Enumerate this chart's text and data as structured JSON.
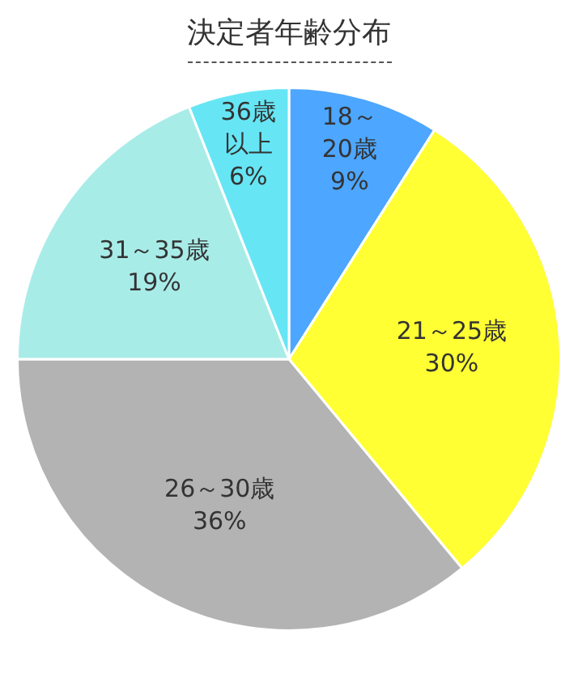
{
  "chart_data": {
    "type": "pie",
    "title": "決定者年齢分布",
    "categories": [
      "18～20歳",
      "21～25歳",
      "26～30歳",
      "31～35歳",
      "36歳以上"
    ],
    "values": [
      9,
      30,
      36,
      19,
      6
    ],
    "value_labels": [
      "9%",
      "30%",
      "36%",
      "19%",
      "6%"
    ],
    "colors": [
      "#4da6ff",
      "#ffff33",
      "#b3b3b3",
      "#a8ece8",
      "#66e6f5"
    ],
    "legend": false
  }
}
